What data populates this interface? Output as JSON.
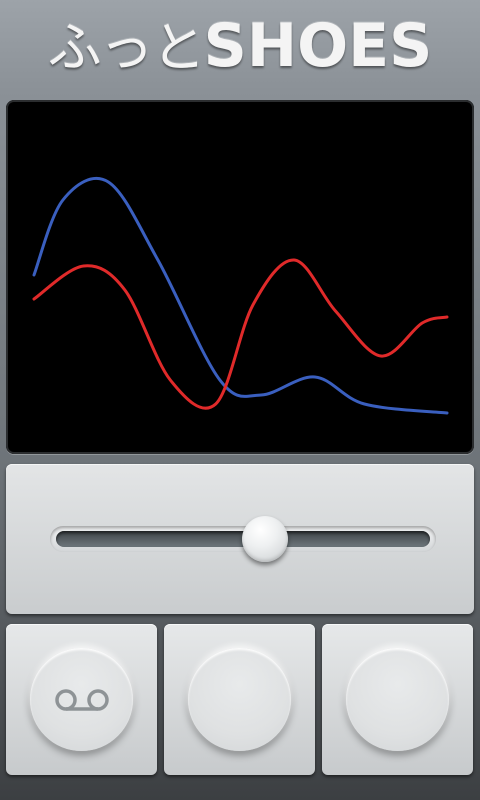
{
  "app": {
    "title_kana": "ふっと",
    "title_latin": "SHOES"
  },
  "graph": {
    "background": "#000000",
    "series": [
      {
        "color": "#3a5fbf",
        "points": [
          [
            0,
            0.55
          ],
          [
            0.07,
            0.8
          ],
          [
            0.18,
            0.86
          ],
          [
            0.3,
            0.6
          ],
          [
            0.45,
            0.2
          ],
          [
            0.55,
            0.15
          ],
          [
            0.68,
            0.21
          ],
          [
            0.8,
            0.12
          ],
          [
            1.0,
            0.09
          ]
        ]
      },
      {
        "color": "#e02a2a",
        "points": [
          [
            0,
            0.47
          ],
          [
            0.12,
            0.58
          ],
          [
            0.22,
            0.5
          ],
          [
            0.33,
            0.2
          ],
          [
            0.44,
            0.12
          ],
          [
            0.53,
            0.45
          ],
          [
            0.63,
            0.6
          ],
          [
            0.73,
            0.43
          ],
          [
            0.84,
            0.28
          ],
          [
            0.94,
            0.39
          ],
          [
            1.0,
            0.41
          ]
        ]
      }
    ]
  },
  "slider": {
    "value": 0.56
  },
  "buttons": [
    {
      "icon": "voicemail-icon"
    },
    {
      "icon": ""
    },
    {
      "icon": ""
    }
  ],
  "colors": {
    "icon": "#8e9396"
  }
}
